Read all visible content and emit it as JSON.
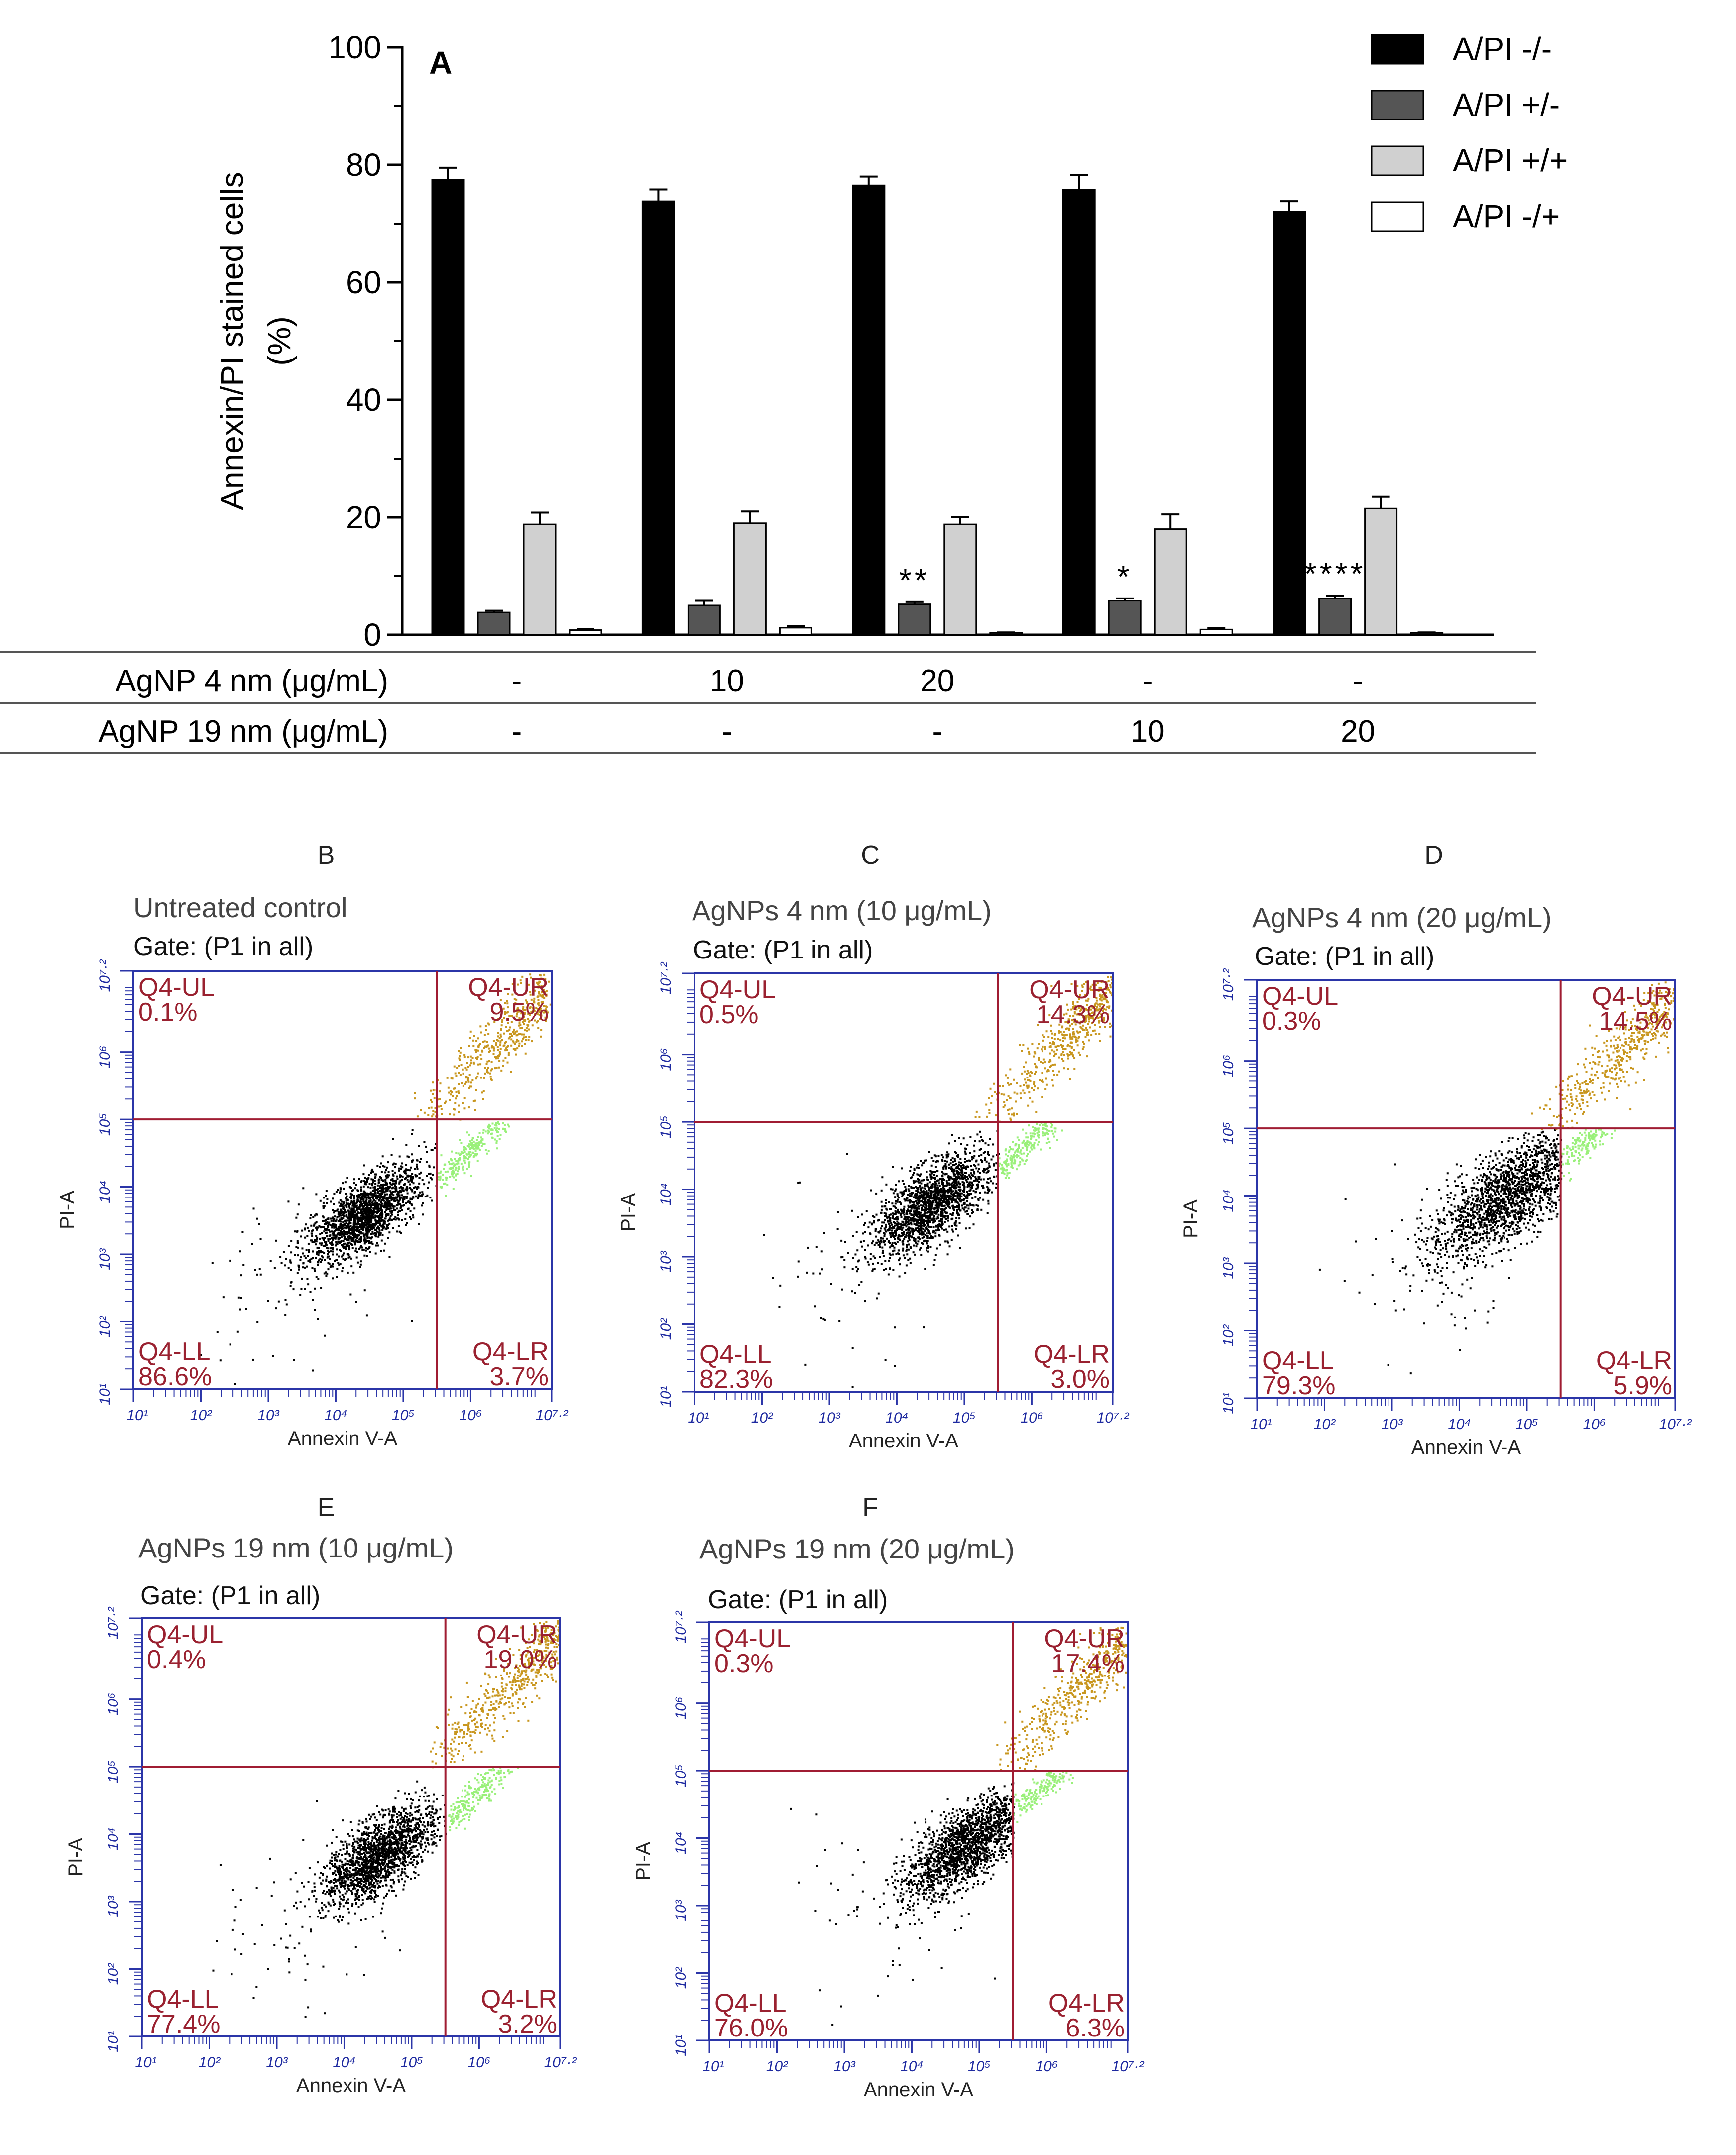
{
  "chart_data": [
    {
      "type": "bar",
      "panel_letter": "A",
      "ylabel_line1": "Annexin/PI stained cells",
      "ylabel_line2": "(%)",
      "ylim": [
        0,
        100
      ],
      "yticks": [
        "0",
        "20",
        "40",
        "60",
        "80",
        "100"
      ],
      "groups": 5,
      "series": [
        {
          "name": "A/PI -/-",
          "color": "#000000",
          "values": [
            77.5,
            73.8,
            76.5,
            75.8,
            72.0
          ],
          "errors": [
            2.0,
            2.0,
            1.5,
            2.5,
            1.8
          ],
          "stars": [
            "",
            "",
            "",
            "",
            ""
          ]
        },
        {
          "name": "A/PI +/-",
          "color": "#555555",
          "values": [
            3.8,
            5.0,
            5.2,
            5.8,
            6.2
          ],
          "errors": [
            0.3,
            0.8,
            0.4,
            0.4,
            0.5
          ],
          "stars": [
            "",
            "",
            "**",
            "*",
            "****"
          ]
        },
        {
          "name": "A/PI +/+",
          "color": "#d0d0d0",
          "values": [
            18.8,
            19.0,
            18.8,
            18.0,
            21.5
          ],
          "errors": [
            2.0,
            2.0,
            1.2,
            2.5,
            2.0
          ],
          "stars": [
            "",
            "",
            "",
            "",
            ""
          ]
        },
        {
          "name": "A/PI -/+",
          "color": "#ffffff",
          "values": [
            0.8,
            1.2,
            0.3,
            0.9,
            0.3
          ],
          "errors": [
            0.2,
            0.3,
            0.1,
            0.2,
            0.1
          ],
          "stars": [
            "",
            "",
            "",
            "",
            ""
          ]
        }
      ],
      "table": [
        {
          "label": "AgNP 4 nm (μg/mL)",
          "values": [
            "-",
            "10",
            "20",
            "-",
            "-"
          ]
        },
        {
          "label": "AgNP 19 nm (μg/mL)",
          "values": [
            "-",
            "-",
            "-",
            "10",
            "20"
          ]
        }
      ]
    },
    {
      "type": "scatter",
      "panel_letter": "B",
      "title": "Untreated control",
      "gate": "Gate: (P1 in all)",
      "xlabel": "Annexin V-A",
      "ylabel": "PI-A",
      "xlim": [
        1,
        7.2
      ],
      "ylim": [
        1,
        7.2
      ],
      "x_ticks": [
        "10¹",
        "10²",
        "10³",
        "10⁴",
        "10⁵",
        "10⁶",
        "10⁷·²"
      ],
      "y_ticks": [
        "10¹",
        "10²",
        "10³",
        "10⁴",
        "10⁵",
        "10⁶",
        "10⁷·²"
      ],
      "gate_x": 5.5,
      "gate_y": 5.0,
      "quadrants": {
        "UL_label": "Q4-UL",
        "UL": "0.1%",
        "UR_label": "Q4-UR",
        "UR": "9.5%",
        "LL_label": "Q4-LL",
        "LL": "86.6%",
        "LR_label": "Q4-LR",
        "LR": "3.7%"
      },
      "cluster": {
        "cx": 4.4,
        "cy": 3.6,
        "spread": 0.32
      }
    },
    {
      "type": "scatter",
      "panel_letter": "C",
      "title": "AgNPs 4 nm (10 μg/mL)",
      "gate": "Gate: (P1 in all)",
      "xlabel": "Annexin V-A",
      "ylabel": "PI-A",
      "xlim": [
        1,
        7.2
      ],
      "ylim": [
        1,
        7.2
      ],
      "x_ticks": [
        "10¹",
        "10²",
        "10³",
        "10⁴",
        "10⁵",
        "10⁶",
        "10⁷·²"
      ],
      "y_ticks": [
        "10¹",
        "10²",
        "10³",
        "10⁴",
        "10⁵",
        "10⁶",
        "10⁷·²"
      ],
      "gate_x": 5.5,
      "gate_y": 5.0,
      "quadrants": {
        "UL_label": "Q4-UL",
        "UL": "0.5%",
        "UR_label": "Q4-UR",
        "UR": "14.3%",
        "LL_label": "Q4-LL",
        "LL": "82.3%",
        "LR_label": "Q4-LR",
        "LR": "3.0%"
      },
      "cluster": {
        "cx": 4.5,
        "cy": 3.8,
        "spread": 0.34
      }
    },
    {
      "type": "scatter",
      "panel_letter": "D",
      "title": "AgNPs 4 nm (20 μg/mL)",
      "gate": "Gate: (P1 in all)",
      "xlabel": "Annexin V-A",
      "ylabel": "PI-A",
      "xlim": [
        1,
        7.2
      ],
      "ylim": [
        1,
        7.2
      ],
      "x_ticks": [
        "10¹",
        "10²",
        "10³",
        "10⁴",
        "10⁵",
        "10⁶",
        "10⁷·²"
      ],
      "y_ticks": [
        "10¹",
        "10²",
        "10³",
        "10⁴",
        "10⁵",
        "10⁶",
        "10⁷·²"
      ],
      "gate_x": 5.5,
      "gate_y": 5.0,
      "quadrants": {
        "UL_label": "Q4-UL",
        "UL": "0.3%",
        "UR_label": "Q4-UR",
        "UR": "14.5%",
        "LL_label": "Q4-LL",
        "LL": "79.3%",
        "LR_label": "Q4-LR",
        "LR": "5.9%"
      },
      "cluster": {
        "cx": 4.7,
        "cy": 4.0,
        "spread": 0.42
      }
    },
    {
      "type": "scatter",
      "panel_letter": "E",
      "title": "AgNPs 19 nm (10 μg/mL)",
      "gate": "Gate: (P1 in all)",
      "xlabel": "Annexin V-A",
      "ylabel": "PI-A",
      "xlim": [
        1,
        7.2
      ],
      "ylim": [
        1,
        7.2
      ],
      "x_ticks": [
        "10¹",
        "10²",
        "10³",
        "10⁴",
        "10⁵",
        "10⁶",
        "10⁷·²"
      ],
      "y_ticks": [
        "10¹",
        "10²",
        "10³",
        "10⁴",
        "10⁵",
        "10⁶",
        "10⁷·²"
      ],
      "gate_x": 5.5,
      "gate_y": 5.0,
      "quadrants": {
        "UL_label": "Q4-UL",
        "UL": "0.4%",
        "UR_label": "Q4-UR",
        "UR": "19.0%",
        "LL_label": "Q4-LL",
        "LL": "77.4%",
        "LR_label": "Q4-LR",
        "LR": "3.2%"
      },
      "cluster": {
        "cx": 4.5,
        "cy": 3.7,
        "spread": 0.32
      }
    },
    {
      "type": "scatter",
      "panel_letter": "F",
      "title": "AgNPs 19 nm (20 μg/mL)",
      "gate": "Gate: (P1 in all)",
      "xlabel": "Annexin V-A",
      "ylabel": "PI-A",
      "xlim": [
        1,
        7.2
      ],
      "ylim": [
        1,
        7.2
      ],
      "x_ticks": [
        "10¹",
        "10²",
        "10³",
        "10⁴",
        "10⁵",
        "10⁶",
        "10⁷·²"
      ],
      "y_ticks": [
        "10¹",
        "10²",
        "10³",
        "10⁴",
        "10⁵",
        "10⁶",
        "10⁷·²"
      ],
      "gate_x": 5.5,
      "gate_y": 5.0,
      "quadrants": {
        "UL_label": "Q4-UL",
        "UL": "0.3%",
        "UR_label": "Q4-UR",
        "UR": "17.4%",
        "LL_label": "Q4-LL",
        "LL": "76.0%",
        "LR_label": "Q4-LR",
        "LR": "6.3%"
      },
      "cluster": {
        "cx": 4.8,
        "cy": 3.9,
        "spread": 0.34
      }
    }
  ],
  "colors": {
    "frame": "#2b35a8",
    "gate": "#a01c32",
    "quadrant_text": "#9a2130",
    "dots_live": "#000000",
    "dots_late": "#c8961e",
    "dots_early": "#9af07a"
  }
}
